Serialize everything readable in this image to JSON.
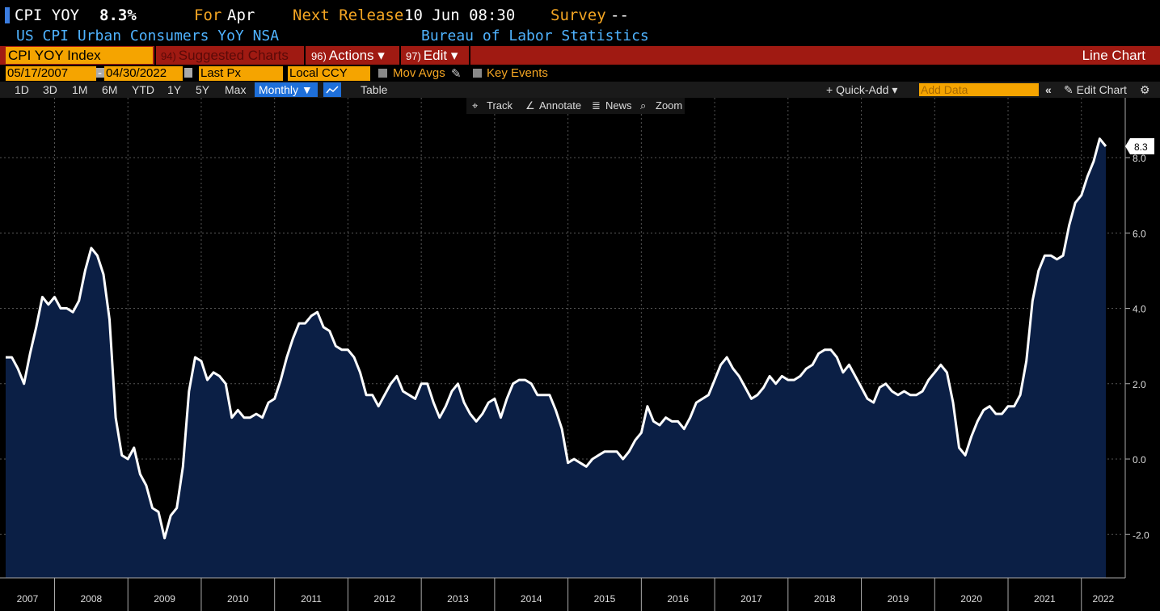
{
  "header": {
    "ticker": "CPI YOY",
    "last_value": "8.3%",
    "for_label": "For",
    "for_period": "Apr",
    "next_release_label": "Next Release",
    "next_release_value": "10 Jun 08:30",
    "survey_label": "Survey",
    "survey_value": "--",
    "description": "US CPI Urban Consumers YoY NSA",
    "source": "Bureau of Labor Statistics"
  },
  "toolbar": {
    "security": "CPI YOY Index",
    "suggested_num": "94)",
    "suggested_label": "Suggested Charts",
    "actions_num": "96)",
    "actions_label": "Actions ▾",
    "edit_num": "97)",
    "edit_label": "Edit ▾",
    "chart_type": "Line Chart"
  },
  "controls": {
    "start_date": "05/17/2007",
    "dash": "-",
    "end_date": "04/30/2022",
    "field": "Last Px",
    "currency": "Local CCY",
    "mov_avgs": "Mov Avgs",
    "key_events": "Key Events"
  },
  "periods": [
    "1D",
    "3D",
    "1M",
    "6M",
    "YTD",
    "1Y",
    "5Y",
    "Max"
  ],
  "frequency": "Monthly ▼",
  "table_label": "Table",
  "quick_add": "+ Quick-Add ▾",
  "add_data_placeholder": "Add Data",
  "collapse": "«",
  "edit_chart": "✎ Edit Chart",
  "settings_icon": "gear-icon",
  "chart_tools": {
    "track": "Track",
    "annotate": "Annotate",
    "news": "News",
    "zoom": "Zoom"
  },
  "colors": {
    "accent_orange": "#f5a400",
    "bar_red": "#a01a12",
    "fill_navy": "#0b1f45",
    "line": "#ffffff",
    "selected_blue": "#1e6fd9"
  },
  "chart_data": {
    "type": "area",
    "ylim": [
      -3,
      9.4
    ],
    "y_ticks": [
      "-2.0",
      "0.0",
      "2.0",
      "4.0",
      "6.0",
      "8.0"
    ],
    "y_tick_values": [
      -2,
      0,
      2,
      4,
      6,
      8
    ],
    "x_tick_labels": [
      "2007",
      "2008",
      "2009",
      "2010",
      "2011",
      "2012",
      "2013",
      "2014",
      "2015",
      "2016",
      "2017",
      "2018",
      "2019",
      "2020",
      "2021",
      "2022"
    ],
    "x_tick_year_positions": [
      2007.0,
      2008.0,
      2009.0,
      2010.0,
      2011.0,
      2012.0,
      2013.0,
      2014.0,
      2015.0,
      2016.0,
      2017.0,
      2018.0,
      2019.0,
      2020.0,
      2021.0,
      2022.0
    ],
    "x_range": [
      "2007-05",
      "2022-04"
    ],
    "last_label": "8.3",
    "grid": true,
    "series": [
      {
        "values": [
          2.7,
          2.7,
          2.4,
          2.0,
          2.8,
          3.5,
          4.3,
          4.1,
          4.3,
          4.0,
          4.0,
          3.9,
          4.2,
          5.0,
          5.6,
          5.4,
          4.9,
          3.7,
          1.1,
          0.1,
          0.0,
          0.3,
          -0.4,
          -0.7,
          -1.3,
          -1.4,
          -2.1,
          -1.5,
          -1.3,
          -0.2,
          1.8,
          2.7,
          2.6,
          2.1,
          2.3,
          2.2,
          2.0,
          1.1,
          1.3,
          1.1,
          1.1,
          1.2,
          1.1,
          1.5,
          1.6,
          2.1,
          2.7,
          3.2,
          3.6,
          3.6,
          3.8,
          3.9,
          3.5,
          3.4,
          3.0,
          2.9,
          2.9,
          2.7,
          2.3,
          1.7,
          1.7,
          1.4,
          1.7,
          2.0,
          2.2,
          1.8,
          1.7,
          1.6,
          2.0,
          2.0,
          1.5,
          1.1,
          1.4,
          1.8,
          2.0,
          1.5,
          1.2,
          1.0,
          1.2,
          1.5,
          1.6,
          1.1,
          1.6,
          2.0,
          2.1,
          2.1,
          2.0,
          1.7,
          1.7,
          1.7,
          1.3,
          0.8,
          -0.1,
          0.0,
          -0.1,
          -0.2,
          0.0,
          0.1,
          0.2,
          0.2,
          0.2,
          0.0,
          0.2,
          0.5,
          0.7,
          1.4,
          1.0,
          0.9,
          1.1,
          1.0,
          1.0,
          0.8,
          1.1,
          1.5,
          1.6,
          1.7,
          2.1,
          2.5,
          2.7,
          2.4,
          2.2,
          1.9,
          1.6,
          1.7,
          1.9,
          2.2,
          2.0,
          2.2,
          2.1,
          2.1,
          2.2,
          2.4,
          2.5,
          2.8,
          2.9,
          2.9,
          2.7,
          2.3,
          2.5,
          2.2,
          1.9,
          1.6,
          1.5,
          1.9,
          2.0,
          1.8,
          1.7,
          1.8,
          1.7,
          1.7,
          1.8,
          2.1,
          2.3,
          2.5,
          2.3,
          1.5,
          0.3,
          0.1,
          0.6,
          1.0,
          1.3,
          1.4,
          1.2,
          1.2,
          1.4,
          1.4,
          1.7,
          2.6,
          4.2,
          5.0,
          5.4,
          5.4,
          5.3,
          5.4,
          6.2,
          6.8,
          7.0,
          7.5,
          7.9,
          8.5,
          8.3
        ]
      }
    ]
  }
}
